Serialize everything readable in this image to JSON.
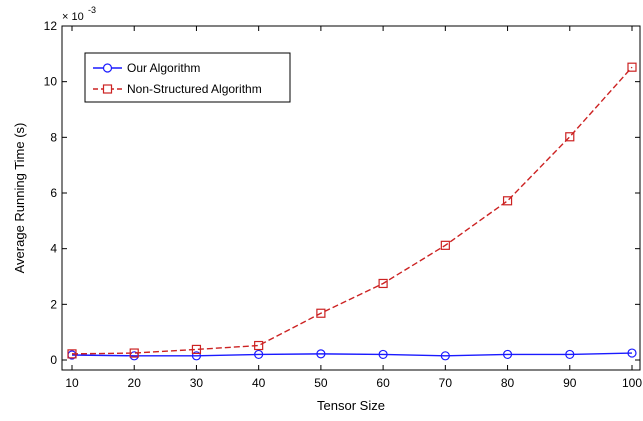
{
  "chart_data": {
    "type": "line",
    "xlabel": "Tensor Size",
    "ylabel": "Average Running Time (s)",
    "y_multiplier": {
      "base": "× 10",
      "exponent": "-3"
    },
    "xlim": [
      10,
      100
    ],
    "ylim": [
      0,
      12
    ],
    "x": [
      10,
      20,
      30,
      40,
      50,
      60,
      70,
      80,
      90,
      100
    ],
    "x_ticks": [
      "10",
      "20",
      "30",
      "40",
      "50",
      "60",
      "70",
      "80",
      "90",
      "100"
    ],
    "y_ticks": [
      "0",
      "2",
      "4",
      "6",
      "8",
      "10",
      "12"
    ],
    "grid": false,
    "legend_position": "top-left",
    "series": [
      {
        "name": "Our Algorithm",
        "color": "#1a1aff",
        "marker": "circle",
        "line_style": "solid",
        "values": [
          0.18,
          0.15,
          0.15,
          0.2,
          0.22,
          0.2,
          0.15,
          0.2,
          0.2,
          0.25
        ]
      },
      {
        "name": "Non-Structured Algorithm",
        "color": "#cc2222",
        "marker": "square",
        "line_style": "dashed",
        "values": [
          0.22,
          0.25,
          0.38,
          0.52,
          1.68,
          2.75,
          4.12,
          5.72,
          8.02,
          10.52
        ]
      }
    ]
  }
}
